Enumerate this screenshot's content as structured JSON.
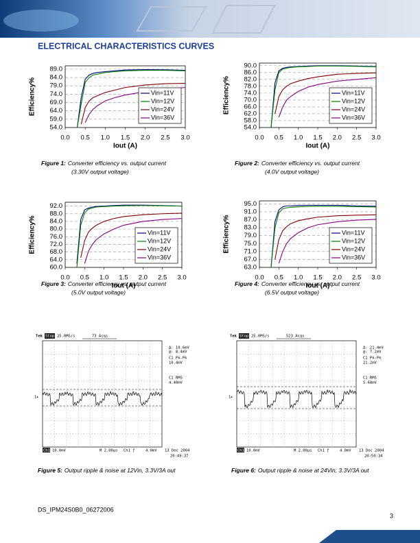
{
  "header": {
    "title": "ELECTRICAL CHARACTERISTICS CURVES"
  },
  "chart_data": [
    {
      "type": "line",
      "x_label": "Iout (A)",
      "y_label": "Efficiency%",
      "x": [
        0.3,
        0.4,
        0.5,
        0.6,
        0.7,
        0.8,
        1.0,
        1.25,
        1.5,
        2.0,
        2.5,
        3.0
      ],
      "series": [
        {
          "name": "Vin=11V",
          "color": "#000080",
          "values": [
            54,
            72,
            83,
            85.5,
            86.5,
            87,
            87.5,
            88,
            88.5,
            88.7,
            88.6,
            88.3
          ]
        },
        {
          "name": "Vin=12V",
          "color": "#008000",
          "values": [
            54,
            68,
            81,
            84,
            85.5,
            86,
            87,
            87.5,
            88,
            88.3,
            88.3,
            88
          ]
        },
        {
          "name": "Vin=24V",
          "color": "#800000",
          "values": [
            null,
            56,
            66,
            70,
            72,
            73,
            75,
            76.5,
            78,
            79.5,
            80.3,
            80.5
          ]
        },
        {
          "name": "Vin=36V",
          "color": "#800080",
          "values": [
            null,
            null,
            57,
            62,
            65,
            67,
            70,
            72,
            73.5,
            75.5,
            77,
            78
          ]
        }
      ],
      "xlim": [
        0,
        3
      ],
      "xticks": [
        {
          "value": 0,
          "label": "0.0"
        },
        {
          "value": 0.5,
          "label": "0.5"
        },
        {
          "value": 1,
          "label": "1.0"
        },
        {
          "value": 1.5,
          "label": "1.5"
        },
        {
          "value": 2,
          "label": "2.0"
        },
        {
          "value": 2.5,
          "label": "2.5"
        },
        {
          "value": 3,
          "label": "3.0"
        }
      ],
      "ylim": [
        54,
        91
      ],
      "yticks": [
        {
          "value": 54,
          "label": "54.0"
        },
        {
          "value": 59,
          "label": "59.0"
        },
        {
          "value": 64,
          "label": "64.0"
        },
        {
          "value": 69,
          "label": "69.0"
        },
        {
          "value": 74,
          "label": "74.0"
        },
        {
          "value": 79,
          "label": "79.0"
        },
        {
          "value": 84,
          "label": "84.0"
        },
        {
          "value": 89,
          "label": "89.0"
        }
      ],
      "grid": true,
      "legend": "lower right"
    },
    {
      "type": "line",
      "x_label": "Iout (A)",
      "y_label": "Efficiency%",
      "x": [
        0.3,
        0.4,
        0.5,
        0.6,
        0.7,
        0.8,
        1.0,
        1.25,
        1.5,
        2.0,
        2.5,
        3.0
      ],
      "series": [
        {
          "name": "Vin=11V",
          "color": "#000080",
          "values": [
            54,
            80,
            87,
            88.5,
            89,
            89.3,
            89.5,
            89.8,
            90,
            90,
            89.8,
            89.5
          ]
        },
        {
          "name": "Vin=12V",
          "color": "#008000",
          "values": [
            54,
            76,
            86,
            88,
            88.5,
            89,
            89.3,
            89.5,
            89.8,
            89.8,
            89.6,
            89.3
          ]
        },
        {
          "name": "Vin=24V",
          "color": "#800000",
          "values": [
            null,
            62,
            72,
            76,
            78,
            79.5,
            81,
            82.5,
            83.5,
            85,
            85.5,
            85.8
          ]
        },
        {
          "name": "Vin=36V",
          "color": "#800080",
          "values": [
            null,
            null,
            60,
            66,
            70,
            72,
            75,
            77.5,
            79,
            81,
            82,
            83
          ]
        }
      ],
      "xlim": [
        0,
        3
      ],
      "xticks": [
        {
          "value": 0,
          "label": "0.0"
        },
        {
          "value": 0.5,
          "label": "0.5"
        },
        {
          "value": 1,
          "label": "1.0"
        },
        {
          "value": 1.5,
          "label": "1.5"
        },
        {
          "value": 2,
          "label": "2.0"
        },
        {
          "value": 2.5,
          "label": "2.5"
        },
        {
          "value": 3,
          "label": "3.0"
        }
      ],
      "ylim": [
        54,
        91.5
      ],
      "yticks": [
        {
          "value": 54,
          "label": "54.0"
        },
        {
          "value": 58,
          "label": "58.0"
        },
        {
          "value": 62,
          "label": "62.0"
        },
        {
          "value": 66,
          "label": "66.0"
        },
        {
          "value": 70,
          "label": "70.0"
        },
        {
          "value": 74,
          "label": "74.0"
        },
        {
          "value": 78,
          "label": "78.0"
        },
        {
          "value": 82,
          "label": "82.0"
        },
        {
          "value": 86,
          "label": "86.0"
        },
        {
          "value": 90,
          "label": "90.0"
        }
      ],
      "grid": true,
      "legend": "lower right"
    },
    {
      "type": "line",
      "x_label": "Iout (A)",
      "y_label": "Efficiency%",
      "x": [
        0.3,
        0.4,
        0.5,
        0.6,
        0.7,
        0.8,
        1.0,
        1.25,
        1.5,
        2.0,
        2.5,
        3.0
      ],
      "series": [
        {
          "name": "Vin=11V",
          "color": "#000080",
          "values": [
            62,
            85,
            90,
            91,
            91.5,
            91.8,
            92,
            92.3,
            92.5,
            92.5,
            92.3,
            92
          ]
        },
        {
          "name": "Vin=12V",
          "color": "#008000",
          "values": [
            60,
            82,
            88.5,
            90.5,
            91,
            91.5,
            91.8,
            92,
            92.2,
            92.3,
            92.2,
            92
          ]
        },
        {
          "name": "Vin=24V",
          "color": "#800000",
          "values": [
            null,
            65,
            74,
            78.5,
            80.5,
            82,
            84,
            85.5,
            86.5,
            87.5,
            88,
            88.3
          ]
        },
        {
          "name": "Vin=36V",
          "color": "#800080",
          "values": [
            null,
            null,
            62,
            68.5,
            72,
            74.5,
            77.5,
            80,
            82,
            84,
            85,
            85.5
          ]
        }
      ],
      "xlim": [
        0,
        3
      ],
      "xticks": [
        {
          "value": 0,
          "label": "0.0"
        },
        {
          "value": 0.5,
          "label": "0.5"
        },
        {
          "value": 1,
          "label": "1.0"
        },
        {
          "value": 1.5,
          "label": "1.5"
        },
        {
          "value": 2,
          "label": "2.0"
        },
        {
          "value": 2.5,
          "label": "2.5"
        },
        {
          "value": 3,
          "label": "3.0"
        }
      ],
      "ylim": [
        60,
        94
      ],
      "yticks": [
        {
          "value": 60,
          "label": "60.0"
        },
        {
          "value": 64,
          "label": "64.0"
        },
        {
          "value": 68,
          "label": "68.0"
        },
        {
          "value": 72,
          "label": "72.0"
        },
        {
          "value": 76,
          "label": "76.0"
        },
        {
          "value": 80,
          "label": "80.0"
        },
        {
          "value": 84,
          "label": "84.0"
        },
        {
          "value": 88,
          "label": "88.0"
        },
        {
          "value": 92,
          "label": "92.0"
        }
      ],
      "grid": true,
      "legend": "lower right"
    },
    {
      "type": "line",
      "x_label": "Iout (A)",
      "y_label": "Efficiency%",
      "x": [
        0.3,
        0.4,
        0.5,
        0.6,
        0.7,
        0.8,
        1.0,
        1.25,
        1.5,
        2.0,
        2.5,
        3.0
      ],
      "series": [
        {
          "name": "Vin=11V",
          "color": "#000080",
          "values": [
            63,
            86,
            92,
            93.5,
            94,
            94,
            94.2,
            94.3,
            94.3,
            94.3,
            94,
            93.8
          ]
        },
        {
          "name": "Vin=12V",
          "color": "#008000",
          "values": [
            63,
            83,
            90.5,
            92.5,
            93,
            93.3,
            93.5,
            93.7,
            93.8,
            93.8,
            93.6,
            93.4
          ]
        },
        {
          "name": "Vin=24V",
          "color": "#800000",
          "values": [
            null,
            67,
            77,
            81.5,
            83.5,
            85,
            86.5,
            87.5,
            88.3,
            89,
            89.3,
            89.5
          ]
        },
        {
          "name": "Vin=36V",
          "color": "#800080",
          "values": [
            null,
            null,
            65,
            71,
            75,
            77.5,
            80.5,
            83,
            84.5,
            86,
            86.8,
            87.2
          ]
        }
      ],
      "xlim": [
        0,
        3
      ],
      "xticks": [
        {
          "value": 0,
          "label": "0.0"
        },
        {
          "value": 0.5,
          "label": "0.5"
        },
        {
          "value": 1,
          "label": "1.0"
        },
        {
          "value": 1.5,
          "label": "1.5"
        },
        {
          "value": 2,
          "label": "2.0"
        },
        {
          "value": 2.5,
          "label": "2.5"
        },
        {
          "value": 3,
          "label": "3.0"
        }
      ],
      "ylim": [
        63,
        96.5
      ],
      "yticks": [
        {
          "value": 63,
          "label": "63.0"
        },
        {
          "value": 67,
          "label": "67.0"
        },
        {
          "value": 71,
          "label": "71.0"
        },
        {
          "value": 75,
          "label": "75.0"
        },
        {
          "value": 79,
          "label": "79.0"
        },
        {
          "value": 83,
          "label": "83.0"
        },
        {
          "value": 87,
          "label": "87.0"
        },
        {
          "value": 91,
          "label": "91.0"
        },
        {
          "value": 95,
          "label": "95.0"
        }
      ],
      "grid": true,
      "legend": "lower right"
    }
  ],
  "figures": [
    {
      "label": "Figure 1:",
      "text": "Converter efficiency vs. output current",
      "note": "(3.30V output voltage)"
    },
    {
      "label": "Figure 2:",
      "text": "Converter efficiency vs. output current",
      "note": "(4.0V output voltage)"
    },
    {
      "label": "Figure 3:",
      "text": "Converter efficiency vs. output current",
      "note": "(5.0V output voltage)"
    },
    {
      "label": "Figure 4:",
      "text": "Converter efficiency vs. output current",
      "note": "(6.5V output voltage)"
    },
    {
      "label": "Figure 5:",
      "text": "Output ripple & noise at 12Vin, 3.3V/3A out"
    },
    {
      "label": "Figure 6:",
      "text": "Output ripple & noise at 24Vin, 3.3V/3A out"
    }
  ],
  "scope_captures": [
    {
      "brand": "Tek",
      "state": "Stop",
      "rate": "25.0MS/s",
      "acqs": "73 Acqs",
      "delta": "Δ: 10.6mV",
      "at": "@: 8.4mV",
      "pk_label": "C1 Pk-Pk",
      "pk_value": "10.4mV",
      "rms_label": "C1 RMS",
      "rms_value": "4.40mV",
      "channel": "Ch1",
      "scale": "10.0mV",
      "time": "M 2.00μs",
      "trigger": "Ch1 ƒ",
      "trigger_level": "4.0mV",
      "date": "13 Dec 2004",
      "clock": "20:49:37",
      "marker": "1▸"
    },
    {
      "brand": "Tek",
      "state": "Stop",
      "rate": "25.0MS/s",
      "acqs": "523 Acqs",
      "delta": "Δ: 21.4mV",
      "at": "@: 7.2mV",
      "pk_label": "C1 Pk-Pk",
      "pk_value": "21.2mV",
      "rms_label": "C1 RMS",
      "rms_value": "5.68mV",
      "channel": "Ch1",
      "scale": "10.0mV",
      "time": "M 2.00μs",
      "trigger": "Ch1 ƒ",
      "trigger_level": "4.0mV",
      "date": "13 Dec 2004",
      "clock": "20:50:34",
      "marker": "1▸"
    }
  ],
  "footer": {
    "doc_id": "DS_IPM24S0B0_06272006",
    "page": "3"
  }
}
